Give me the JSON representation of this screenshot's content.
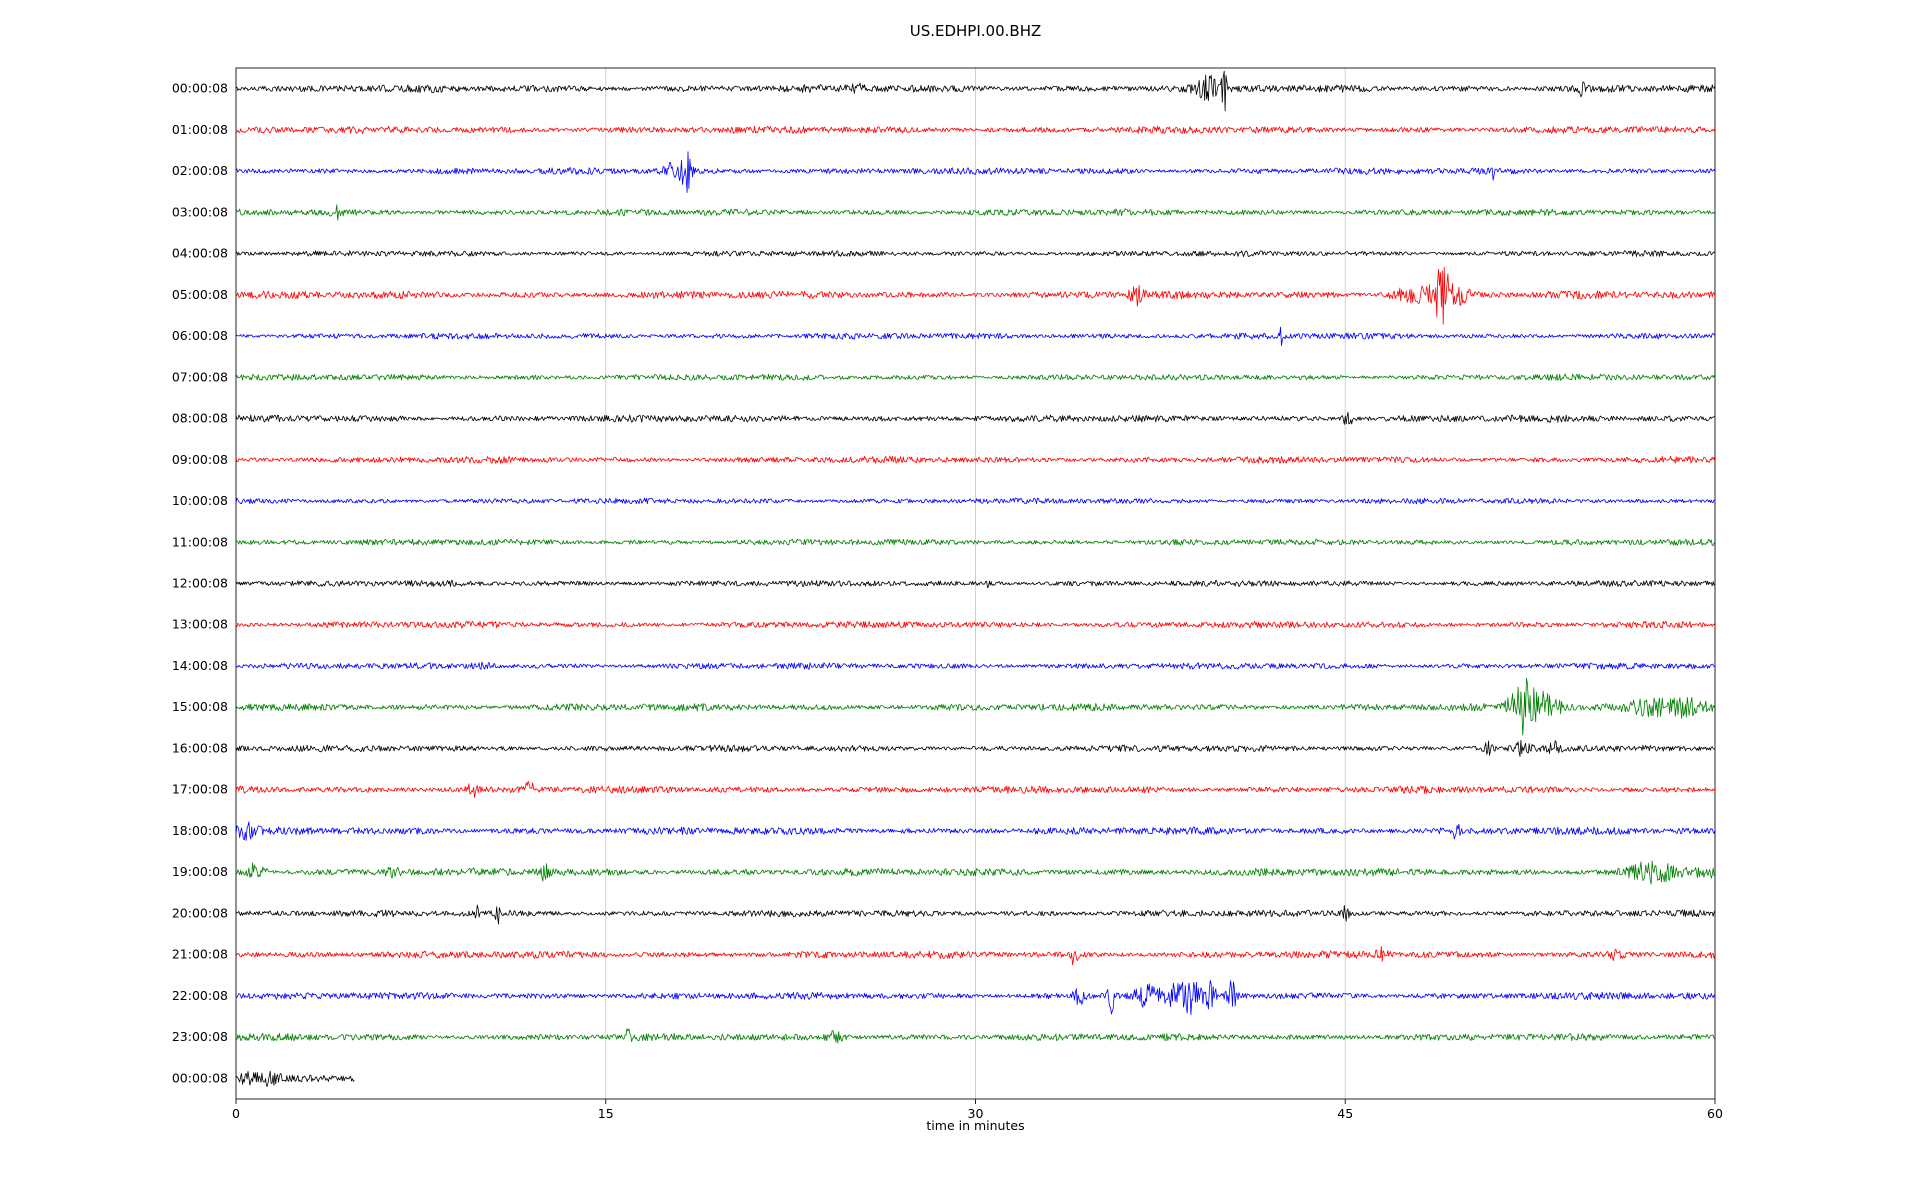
{
  "chart_data": {
    "type": "line",
    "title": "US.EDHPI.00.BHZ",
    "xlabel": "time in minutes",
    "xlim": [
      0,
      60
    ],
    "x_ticks": [
      0,
      15,
      30,
      45,
      60
    ],
    "grid_x": [
      15,
      30,
      45
    ],
    "rows": [
      {
        "label": "00:00:08",
        "color": "#000000",
        "base": 3.0,
        "events": [
          [
            25.2,
            5,
            0.15
          ],
          [
            39.4,
            12,
            0.3
          ],
          [
            40.1,
            20,
            0.08
          ],
          [
            54.6,
            6,
            0.08
          ]
        ]
      },
      {
        "label": "01:00:08",
        "color": "#ff0000",
        "base": 2.8,
        "events": []
      },
      {
        "label": "02:00:08",
        "color": "#0000ff",
        "base": 2.6,
        "events": [
          [
            17.8,
            8,
            0.3
          ],
          [
            18.3,
            22,
            0.12
          ],
          [
            51.0,
            6,
            0.06
          ]
        ]
      },
      {
        "label": "03:00:08",
        "color": "#007f00",
        "base": 2.6,
        "events": [
          [
            4.1,
            7,
            0.15
          ]
        ]
      },
      {
        "label": "04:00:08",
        "color": "#000000",
        "base": 2.2,
        "events": []
      },
      {
        "label": "05:00:08",
        "color": "#ff0000",
        "base": 3.0,
        "events": [
          [
            36.5,
            9,
            0.2
          ],
          [
            47.8,
            8,
            0.6
          ],
          [
            48.9,
            22,
            0.25
          ],
          [
            49.4,
            10,
            0.4
          ]
        ]
      },
      {
        "label": "06:00:08",
        "color": "#0000ff",
        "base": 2.4,
        "events": [
          [
            42.4,
            8,
            0.05
          ]
        ]
      },
      {
        "label": "07:00:08",
        "color": "#007f00",
        "base": 2.4,
        "events": []
      },
      {
        "label": "08:00:08",
        "color": "#000000",
        "base": 2.8,
        "events": [
          [
            45.1,
            10,
            0.12
          ]
        ]
      },
      {
        "label": "09:00:08",
        "color": "#ff0000",
        "base": 2.6,
        "events": []
      },
      {
        "label": "10:00:08",
        "color": "#0000ff",
        "base": 2.2,
        "events": []
      },
      {
        "label": "11:00:08",
        "color": "#007f00",
        "base": 2.4,
        "events": []
      },
      {
        "label": "12:00:08",
        "color": "#000000",
        "base": 2.4,
        "events": [
          [
            30.5,
            4,
            0.05
          ]
        ]
      },
      {
        "label": "13:00:08",
        "color": "#ff0000",
        "base": 2.6,
        "events": []
      },
      {
        "label": "14:00:08",
        "color": "#0000ff",
        "base": 2.4,
        "events": [
          [
            10.0,
            2,
            0.3
          ]
        ]
      },
      {
        "label": "15:00:08",
        "color": "#007f00",
        "base": 2.8,
        "events": [
          [
            52.2,
            25,
            0.35
          ],
          [
            53.0,
            12,
            0.5
          ],
          [
            57.5,
            8,
            0.8
          ],
          [
            59.0,
            8,
            0.6
          ]
        ]
      },
      {
        "label": "16:00:08",
        "color": "#000000",
        "base": 2.6,
        "events": [
          [
            50.8,
            5,
            0.15
          ],
          [
            52.2,
            6,
            0.2
          ],
          [
            53.5,
            5,
            0.2
          ]
        ]
      },
      {
        "label": "17:00:08",
        "color": "#ff0000",
        "base": 2.8,
        "events": [
          [
            9.6,
            6,
            0.15
          ],
          [
            11.9,
            9,
            0.12
          ]
        ]
      },
      {
        "label": "18:00:08",
        "color": "#0000ff",
        "base": 3.0,
        "events": [
          [
            0.4,
            6,
            0.3
          ],
          [
            49.5,
            12,
            0.08
          ]
        ]
      },
      {
        "label": "19:00:08",
        "color": "#007f00",
        "base": 3.0,
        "events": [
          [
            0.8,
            9,
            0.25
          ],
          [
            6.4,
            5,
            0.2
          ],
          [
            12.5,
            8,
            0.15
          ],
          [
            57.5,
            9,
            0.7
          ],
          [
            59.5,
            6,
            0.3
          ]
        ]
      },
      {
        "label": "20:00:08",
        "color": "#000000",
        "base": 2.6,
        "events": [
          [
            9.8,
            9,
            0.08
          ],
          [
            10.6,
            14,
            0.05
          ],
          [
            45.0,
            7,
            0.12
          ]
        ]
      },
      {
        "label": "21:00:08",
        "color": "#ff0000",
        "base": 2.8,
        "events": [
          [
            34.0,
            10,
            0.1
          ],
          [
            46.5,
            6,
            0.15
          ],
          [
            56.0,
            4,
            0.2
          ]
        ]
      },
      {
        "label": "22:00:08",
        "color": "#0000ff",
        "base": 2.8,
        "events": [
          [
            34.2,
            8,
            0.15
          ],
          [
            35.5,
            18,
            0.1
          ],
          [
            36.8,
            10,
            0.3
          ],
          [
            38.0,
            12,
            0.5
          ],
          [
            38.8,
            14,
            0.2
          ],
          [
            39.5,
            12,
            0.2
          ],
          [
            40.4,
            14,
            0.12
          ]
        ]
      },
      {
        "label": "23:00:08",
        "color": "#007f00",
        "base": 2.8,
        "events": [
          [
            15.9,
            7,
            0.08
          ],
          [
            24.3,
            5,
            0.25
          ]
        ]
      },
      {
        "label": "00:00:08",
        "color": "#000000",
        "base": 3.0,
        "span": [
          0,
          4.8
        ],
        "events": [
          [
            0.5,
            6,
            0.2
          ],
          [
            1.3,
            4,
            0.3
          ]
        ]
      }
    ]
  },
  "colors": {
    "black": "#000000",
    "red": "#ff0000",
    "blue": "#0000ff",
    "green": "#007f00",
    "grid": "#d0d0d0",
    "axis": "#262626"
  }
}
